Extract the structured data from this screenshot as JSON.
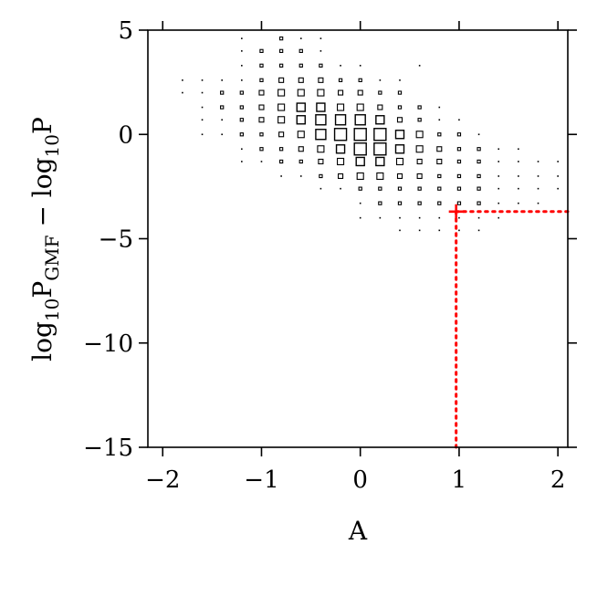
{
  "chart_data": {
    "type": "scatter",
    "xlabel": "A",
    "ylabel": {
      "parts": [
        "log",
        "10",
        "P",
        "GMF",
        " − log",
        "10",
        "P"
      ]
    },
    "xlim": [
      -2.15,
      2.1
    ],
    "ylim": [
      -15,
      5
    ],
    "xticks": [
      -2,
      -1,
      0,
      1,
      2
    ],
    "xtick_labels": [
      "−2",
      "−1",
      "0",
      "1",
      "2"
    ],
    "yticks": [
      -15,
      -10,
      -5,
      0,
      5
    ],
    "ytick_labels": [
      "−15",
      "−10",
      "−5",
      "0",
      "5"
    ],
    "grid": false,
    "legend": "none",
    "marker": "open-square",
    "marker_size_encodes": "density",
    "highlight": {
      "x": 0.97,
      "y": -3.7,
      "marker": "plus",
      "color": "#ff0000",
      "guide_lines": "dotted to bottom and right axes"
    },
    "columns": [
      {
        "x": -1.8,
        "points": [
          [
            2.6,
            1
          ],
          [
            2.0,
            1
          ]
        ]
      },
      {
        "x": -1.6,
        "points": [
          [
            2.6,
            1
          ],
          [
            2.0,
            1
          ],
          [
            1.3,
            1
          ],
          [
            0.7,
            1
          ],
          [
            0.0,
            1
          ]
        ]
      },
      {
        "x": -1.4,
        "points": [
          [
            2.6,
            1
          ],
          [
            2.0,
            2
          ],
          [
            1.3,
            2
          ],
          [
            0.7,
            1
          ],
          [
            0.0,
            1
          ]
        ]
      },
      {
        "x": -1.2,
        "points": [
          [
            4.6,
            1
          ],
          [
            4.0,
            1
          ],
          [
            3.3,
            1
          ],
          [
            2.6,
            1
          ],
          [
            2.0,
            2
          ],
          [
            1.3,
            2
          ],
          [
            0.7,
            2
          ],
          [
            0.0,
            2
          ],
          [
            -0.7,
            1
          ],
          [
            -1.3,
            1
          ]
        ]
      },
      {
        "x": -1.0,
        "points": [
          [
            4.0,
            2
          ],
          [
            3.3,
            2
          ],
          [
            2.6,
            2
          ],
          [
            2.0,
            3
          ],
          [
            1.3,
            3
          ],
          [
            0.7,
            3
          ],
          [
            0.0,
            2
          ],
          [
            -0.7,
            2
          ],
          [
            -1.3,
            1
          ]
        ]
      },
      {
        "x": -0.8,
        "points": [
          [
            4.6,
            2
          ],
          [
            4.0,
            2
          ],
          [
            3.3,
            2
          ],
          [
            2.6,
            3
          ],
          [
            2.0,
            4
          ],
          [
            1.3,
            4
          ],
          [
            0.7,
            4
          ],
          [
            0.0,
            3
          ],
          [
            -0.7,
            2
          ],
          [
            -1.3,
            2
          ],
          [
            -2.0,
            1
          ]
        ]
      },
      {
        "x": -0.6,
        "points": [
          [
            4.6,
            1
          ],
          [
            4.0,
            2
          ],
          [
            3.3,
            2
          ],
          [
            2.6,
            3
          ],
          [
            2.0,
            4
          ],
          [
            1.3,
            5
          ],
          [
            0.7,
            5
          ],
          [
            0.0,
            4
          ],
          [
            -0.7,
            3
          ],
          [
            -1.3,
            2
          ],
          [
            -2.0,
            1
          ]
        ]
      },
      {
        "x": -0.4,
        "points": [
          [
            4.6,
            1
          ],
          [
            4.0,
            1
          ],
          [
            3.3,
            2
          ],
          [
            2.6,
            3
          ],
          [
            2.0,
            4
          ],
          [
            1.3,
            5
          ],
          [
            0.7,
            6
          ],
          [
            0.0,
            6
          ],
          [
            -0.7,
            4
          ],
          [
            -1.3,
            3
          ],
          [
            -2.0,
            2
          ],
          [
            -2.6,
            1
          ]
        ]
      },
      {
        "x": -0.2,
        "points": [
          [
            3.3,
            1
          ],
          [
            2.6,
            2
          ],
          [
            2.0,
            3
          ],
          [
            1.3,
            4
          ],
          [
            0.7,
            6
          ],
          [
            0.0,
            7
          ],
          [
            -0.7,
            5
          ],
          [
            -1.3,
            4
          ],
          [
            -2.0,
            3
          ],
          [
            -2.6,
            1
          ]
        ]
      },
      {
        "x": 0.0,
        "points": [
          [
            3.3,
            1
          ],
          [
            2.6,
            2
          ],
          [
            2.0,
            3
          ],
          [
            1.3,
            4
          ],
          [
            0.7,
            6
          ],
          [
            0.0,
            7
          ],
          [
            -0.7,
            7
          ],
          [
            -1.3,
            5
          ],
          [
            -2.0,
            4
          ],
          [
            -2.6,
            2
          ],
          [
            -3.3,
            1
          ],
          [
            -4.0,
            1
          ]
        ]
      },
      {
        "x": 0.2,
        "points": [
          [
            2.6,
            1
          ],
          [
            2.0,
            2
          ],
          [
            1.3,
            3
          ],
          [
            0.7,
            5
          ],
          [
            0.0,
            7
          ],
          [
            -0.7,
            7
          ],
          [
            -1.3,
            5
          ],
          [
            -2.0,
            4
          ],
          [
            -2.6,
            2
          ],
          [
            -3.3,
            2
          ],
          [
            -4.0,
            1
          ]
        ]
      },
      {
        "x": 0.4,
        "points": [
          [
            2.6,
            1
          ],
          [
            2.0,
            2
          ],
          [
            1.3,
            2
          ],
          [
            0.7,
            3
          ],
          [
            0.0,
            5
          ],
          [
            -0.7,
            5
          ],
          [
            -1.3,
            4
          ],
          [
            -2.0,
            3
          ],
          [
            -2.6,
            2
          ],
          [
            -3.3,
            2
          ],
          [
            -4.0,
            1
          ],
          [
            -4.6,
            1
          ]
        ]
      },
      {
        "x": 0.6,
        "points": [
          [
            3.3,
            1
          ],
          [
            1.3,
            2
          ],
          [
            0.7,
            2
          ],
          [
            0.0,
            4
          ],
          [
            -0.7,
            4
          ],
          [
            -1.3,
            3
          ],
          [
            -2.0,
            3
          ],
          [
            -2.6,
            2
          ],
          [
            -3.3,
            2
          ],
          [
            -4.0,
            1
          ],
          [
            -4.6,
            1
          ]
        ]
      },
      {
        "x": 0.8,
        "points": [
          [
            1.3,
            1
          ],
          [
            0.7,
            1
          ],
          [
            0.0,
            2
          ],
          [
            -0.7,
            3
          ],
          [
            -1.3,
            3
          ],
          [
            -2.0,
            2
          ],
          [
            -2.6,
            2
          ],
          [
            -3.3,
            2
          ],
          [
            -4.0,
            1
          ],
          [
            -4.6,
            1
          ]
        ]
      },
      {
        "x": 1.0,
        "points": [
          [
            0.7,
            1
          ],
          [
            0.0,
            2
          ],
          [
            -0.7,
            2
          ],
          [
            -1.3,
            2
          ],
          [
            -2.0,
            2
          ],
          [
            -2.6,
            2
          ],
          [
            -3.3,
            2
          ],
          [
            -4.0,
            1
          ],
          [
            -4.6,
            1
          ]
        ]
      },
      {
        "x": 1.2,
        "points": [
          [
            0.0,
            1
          ],
          [
            -0.7,
            2
          ],
          [
            -1.3,
            2
          ],
          [
            -2.0,
            2
          ],
          [
            -2.6,
            2
          ],
          [
            -3.3,
            2
          ],
          [
            -4.0,
            1
          ],
          [
            -4.6,
            1
          ]
        ]
      },
      {
        "x": 1.4,
        "points": [
          [
            -0.7,
            1
          ],
          [
            -1.3,
            1
          ],
          [
            -2.0,
            1
          ],
          [
            -2.6,
            1
          ],
          [
            -3.3,
            1
          ],
          [
            -4.0,
            1
          ]
        ]
      },
      {
        "x": 1.6,
        "points": [
          [
            -0.7,
            1
          ],
          [
            -1.3,
            1
          ],
          [
            -2.0,
            1
          ],
          [
            -2.6,
            1
          ],
          [
            -3.3,
            1
          ]
        ]
      },
      {
        "x": 1.8,
        "points": [
          [
            -1.3,
            1
          ],
          [
            -2.0,
            1
          ],
          [
            -2.6,
            1
          ],
          [
            -3.3,
            1
          ]
        ]
      },
      {
        "x": 2.0,
        "points": [
          [
            -1.3,
            1
          ],
          [
            -2.0,
            1
          ],
          [
            -2.6,
            1
          ]
        ]
      }
    ]
  }
}
